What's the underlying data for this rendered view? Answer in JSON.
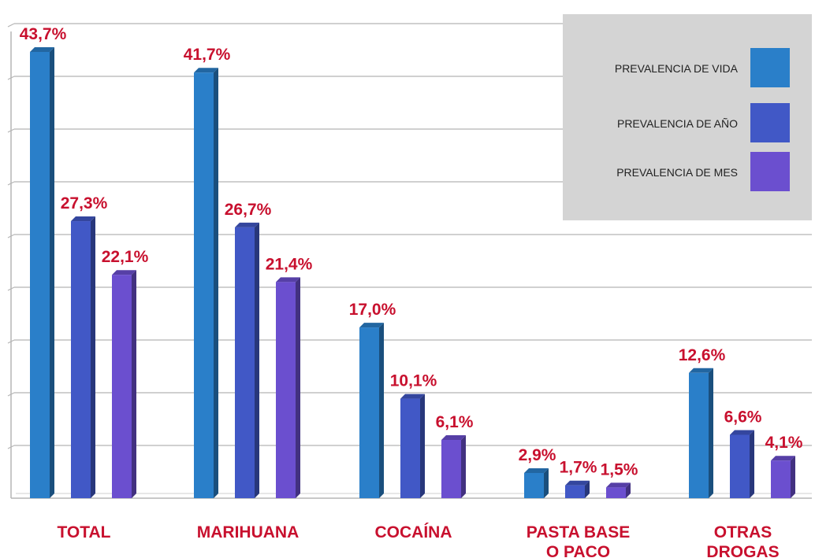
{
  "chart_data": {
    "type": "bar",
    "categories": [
      {
        "lines": [
          "TOTAL"
        ]
      },
      {
        "lines": [
          "MARIHUANA"
        ]
      },
      {
        "lines": [
          "COCAÍNA"
        ]
      },
      {
        "lines": [
          "PASTA BASE",
          "O PACO"
        ]
      },
      {
        "lines": [
          "OTRAS",
          "DROGAS"
        ]
      }
    ],
    "series": [
      {
        "name": "PREVALENCIA DE VIDA",
        "color": "#2a7fc9",
        "values": [
          43.7,
          41.7,
          17.0,
          2.9,
          12.6
        ],
        "labels": [
          "43,7%",
          "41,7%",
          "17,0%",
          "2,9%",
          "12,6%"
        ]
      },
      {
        "name": "PREVALENCIA DE AÑO",
        "color": "#4158c6",
        "values": [
          27.3,
          26.7,
          10.1,
          1.7,
          6.6
        ],
        "labels": [
          "27,3%",
          "26,7%",
          "10,1%",
          "1,7%",
          "6,6%"
        ]
      },
      {
        "name": "PREVALENCIA DE MES",
        "color": "#6b4fcf",
        "values": [
          22.1,
          21.4,
          6.1,
          1.5,
          4.1
        ],
        "labels": [
          "22,1%",
          "21,4%",
          "6,1%",
          "1,5%",
          "4,1%"
        ]
      }
    ],
    "ylim": [
      0,
      45
    ],
    "grid": true,
    "legend_position": "top-right",
    "label_color": "#c8102e",
    "legend_bg": "#d4d4d4"
  }
}
